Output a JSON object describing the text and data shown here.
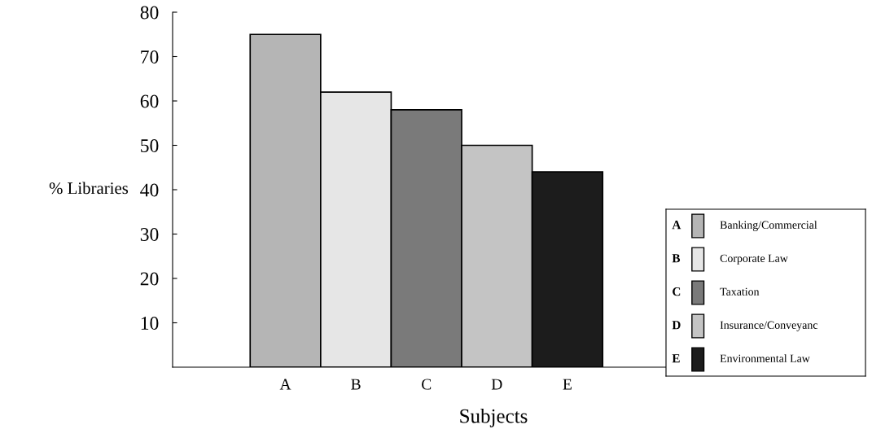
{
  "chart_data": {
    "type": "bar",
    "xlabel": "Subjects",
    "ylabel": "% Libraries",
    "categories": [
      "A",
      "B",
      "C",
      "D",
      "E"
    ],
    "series": [
      {
        "name": "Banking/Commercial",
        "color": "#b5b5b5",
        "values": [
          75,
          null,
          null,
          null,
          null
        ]
      },
      {
        "name": "Corporate Law",
        "color": "#e6e6e6",
        "values": [
          null,
          62,
          null,
          null,
          null
        ]
      },
      {
        "name": "Taxation",
        "color": "#7a7a7a",
        "values": [
          null,
          null,
          58,
          null,
          null
        ]
      },
      {
        "name": "Insurance/Conveyanc",
        "color": "#c4c4c4",
        "values": [
          null,
          null,
          null,
          50,
          null
        ]
      },
      {
        "name": "Environmental Law",
        "color": "#1c1c1c",
        "values": [
          null,
          null,
          null,
          null,
          44
        ]
      }
    ],
    "ylim": [
      0,
      80
    ],
    "yticks": [
      10,
      20,
      30,
      40,
      50,
      60,
      70,
      80
    ],
    "legend": "right",
    "grid": false
  }
}
